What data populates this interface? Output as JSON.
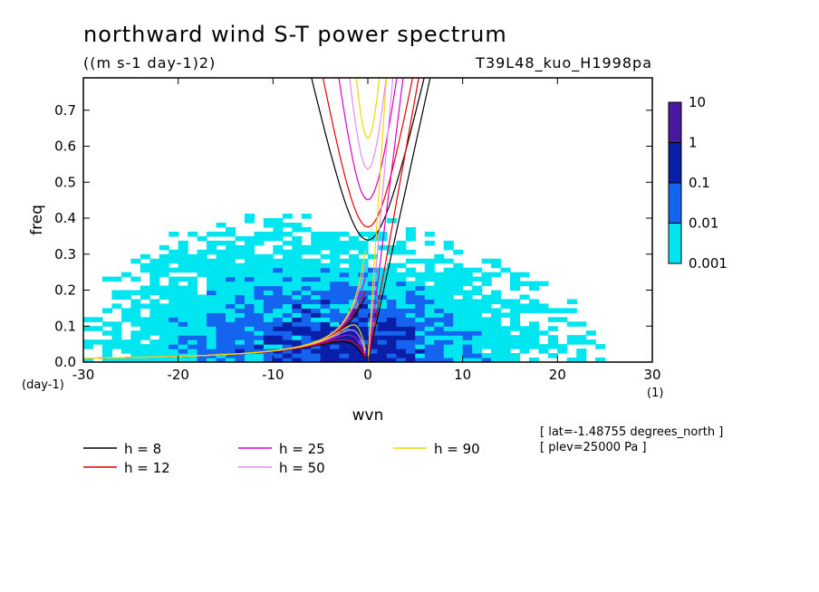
{
  "chart_data": {
    "type": "heatmap",
    "title": "northward wind S-T power spectrum",
    "subtitle": "((m s-1 day-1)2)",
    "run_label": "T39L48_kuo_H1998pa",
    "xlabel": "wvn",
    "x_unit": "(1)",
    "ylabel": "freq",
    "y_unit": "(day-1)",
    "xlim": [
      -30,
      30
    ],
    "ylim": [
      0,
      0.79
    ],
    "x_ticks": [
      -30,
      -20,
      -10,
      0,
      10,
      20,
      30
    ],
    "y_ticks": [
      0.0,
      0.1,
      0.2,
      0.3,
      0.4,
      0.5,
      0.6,
      0.7
    ],
    "x_tick_labels": [
      "-30",
      "-20",
      "-10",
      "0",
      "10",
      "20",
      "30"
    ],
    "y_tick_labels": [
      "0.0",
      "0.1",
      "0.2",
      "0.3",
      "0.4",
      "0.5",
      "0.6",
      "0.7"
    ],
    "colorbar": {
      "levels": [
        "10",
        "1",
        "0.1",
        "0.01",
        "0.001"
      ],
      "colors": [
        "#4a1a9e",
        "#0a1fa8",
        "#1464f0",
        "#00e6f0"
      ]
    },
    "color_regions": [
      {
        "level": "0.001",
        "color": "#00e6f0",
        "region": "broad band, |wvn| <= 30, freq 0 to ~0.5"
      },
      {
        "level": "0.01",
        "color": "#1464f0",
        "region": "wvn -12 to 8, freq 0 to ~0.25"
      },
      {
        "level": "0.1",
        "color": "#0a1fa8",
        "region": "wvn -3 to 2, freq 0 to ~0.06"
      }
    ],
    "dispersion_curves": [
      {
        "name": "h =  8",
        "color": "#000000",
        "h": 8
      },
      {
        "name": "h = 12",
        "color": "#e60000",
        "h": 12
      },
      {
        "name": "h = 25",
        "color": "#d800c8",
        "h": 25
      },
      {
        "name": "h = 50",
        "color": "#e090e8",
        "h": 50
      },
      {
        "name": "h = 90",
        "color": "#f0d800",
        "h": 90
      }
    ],
    "annotations": [
      "[ lat=-1.48755 degrees_north ]",
      "[ plev=25000 Pa ]"
    ],
    "grid": false,
    "legend_placement": "bottom"
  }
}
